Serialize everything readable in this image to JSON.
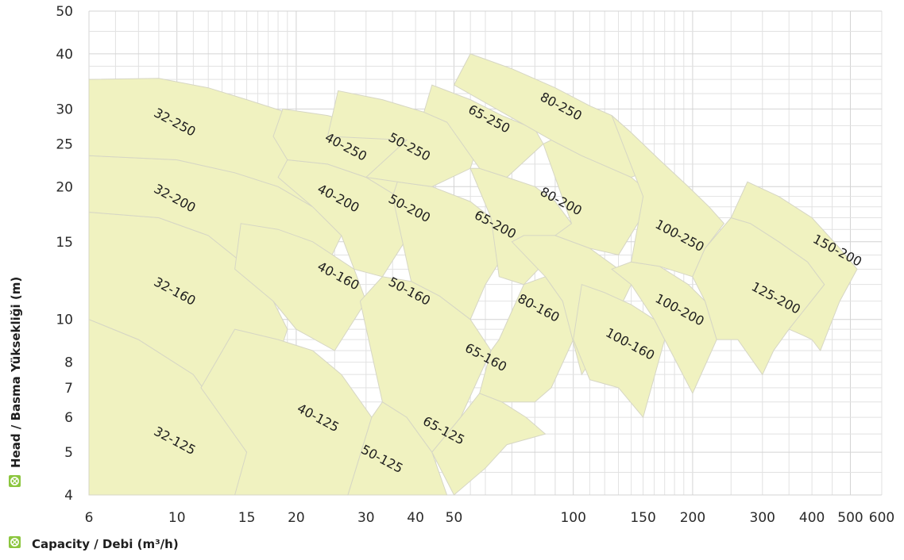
{
  "chart_data": {
    "type": "area",
    "xlabel": "Capacity / Debi (m³/h)",
    "ylabel": "Head / Basma Yüksekliği (m)",
    "x_scale": "log",
    "y_scale": "log",
    "xlim": [
      6,
      600
    ],
    "ylim": [
      4,
      50
    ],
    "grid": true,
    "x_ticks": [
      "6",
      "10",
      "15",
      "20",
      "30",
      "40",
      "50",
      "100",
      "150",
      "200",
      "300",
      "400",
      "500",
      "600"
    ],
    "y_ticks": [
      "4",
      "5",
      "6",
      "7",
      "8",
      "10",
      "15",
      "20",
      "25",
      "30",
      "40",
      "50"
    ],
    "colors": {
      "region_fill": "#f0f2c0",
      "region_border": "#d6d6c4",
      "icon": "#8cc63f"
    },
    "icon": "pump-badge-icon",
    "pump_ranges": [
      {
        "label": "32-125",
        "points": [
          [
            6,
            4
          ],
          [
            6,
            10
          ],
          [
            8,
            9
          ],
          [
            11,
            7.5
          ],
          [
            13.5,
            5.8
          ],
          [
            15,
            5
          ],
          [
            15,
            4
          ]
        ]
      },
      {
        "label": "32-160",
        "points": [
          [
            6,
            10
          ],
          [
            6,
            17.5
          ],
          [
            9,
            17
          ],
          [
            12,
            15.5
          ],
          [
            15,
            13.2
          ],
          [
            17.5,
            11
          ],
          [
            19,
            9.5
          ],
          [
            15,
            5
          ],
          [
            13.5,
            5.8
          ],
          [
            11,
            7.5
          ],
          [
            8,
            9
          ]
        ]
      },
      {
        "label": "32-200",
        "points": [
          [
            6,
            17.5
          ],
          [
            6,
            23.5
          ],
          [
            10,
            23
          ],
          [
            14,
            21.5
          ],
          [
            18,
            20
          ],
          [
            22,
            18
          ],
          [
            26,
            15.5
          ],
          [
            20,
            9.5
          ],
          [
            17.5,
            11
          ],
          [
            15,
            13.2
          ],
          [
            12,
            15.5
          ],
          [
            9,
            17
          ]
        ]
      },
      {
        "label": "32-250",
        "points": [
          [
            6,
            23.5
          ],
          [
            6,
            35
          ],
          [
            9,
            35.2
          ],
          [
            12,
            33.5
          ],
          [
            15,
            31.5
          ],
          [
            20,
            29
          ],
          [
            24,
            26
          ],
          [
            28,
            23.5
          ],
          [
            22,
            18
          ],
          [
            18,
            20
          ],
          [
            14,
            21.5
          ],
          [
            10,
            23
          ]
        ]
      },
      {
        "label": "40-125",
        "points": [
          [
            11.5,
            7
          ],
          [
            14,
            9.5
          ],
          [
            18,
            9
          ],
          [
            22,
            8.5
          ],
          [
            26,
            7.5
          ],
          [
            31,
            6
          ],
          [
            27,
            4
          ],
          [
            14,
            4
          ],
          [
            15,
            5
          ]
        ]
      },
      {
        "label": "40-160",
        "points": [
          [
            14,
            13
          ],
          [
            14.5,
            16.5
          ],
          [
            18,
            16
          ],
          [
            22,
            15
          ],
          [
            28,
            13
          ],
          [
            30,
            11
          ],
          [
            25,
            8.5
          ],
          [
            20,
            9.5
          ],
          [
            17.5,
            11
          ]
        ]
      },
      {
        "label": "40-200",
        "points": [
          [
            18,
            21
          ],
          [
            19,
            23
          ],
          [
            24,
            22.5
          ],
          [
            30,
            21
          ],
          [
            36,
            19
          ],
          [
            41,
            17
          ],
          [
            33,
            12.5
          ],
          [
            28,
            13
          ],
          [
            26,
            15.5
          ],
          [
            22,
            18
          ]
        ]
      },
      {
        "label": "40-250",
        "points": [
          [
            17.5,
            26
          ],
          [
            18.5,
            30
          ],
          [
            24,
            29
          ],
          [
            30,
            27.5
          ],
          [
            38,
            25.5
          ],
          [
            42,
            23
          ],
          [
            36,
            19
          ],
          [
            30,
            21
          ],
          [
            24,
            22.5
          ],
          [
            19,
            23
          ]
        ]
      },
      {
        "label": "50-125",
        "points": [
          [
            27,
            4
          ],
          [
            31,
            6
          ],
          [
            33,
            6.5
          ],
          [
            38,
            6
          ],
          [
            44,
            5
          ],
          [
            48,
            4
          ]
        ]
      },
      {
        "label": "50-160",
        "points": [
          [
            29,
            11
          ],
          [
            33,
            12.5
          ],
          [
            39,
            12.2
          ],
          [
            46,
            11.3
          ],
          [
            55,
            10
          ],
          [
            62,
            8.5
          ],
          [
            52,
            6
          ],
          [
            44,
            5
          ],
          [
            38,
            6
          ],
          [
            33,
            6.5
          ]
        ]
      },
      {
        "label": "50-200",
        "points": [
          [
            35,
            19
          ],
          [
            36,
            20.5
          ],
          [
            44,
            20
          ],
          [
            55,
            18.5
          ],
          [
            62,
            17
          ],
          [
            70,
            15
          ],
          [
            60,
            12
          ],
          [
            55,
            10
          ],
          [
            46,
            11.3
          ],
          [
            39,
            12.2
          ]
        ]
      },
      {
        "label": "50-250",
        "points": [
          [
            24,
            26
          ],
          [
            25.5,
            33
          ],
          [
            33,
            31.5
          ],
          [
            42,
            29.5
          ],
          [
            48,
            28
          ],
          [
            58,
            25.5
          ],
          [
            55,
            22
          ],
          [
            44,
            20
          ],
          [
            36,
            20.5
          ],
          [
            30,
            21
          ],
          [
            38,
            25.5
          ]
        ]
      },
      {
        "label": "65-125",
        "points": [
          [
            44,
            5
          ],
          [
            52,
            6
          ],
          [
            58,
            6.8
          ],
          [
            66,
            6.5
          ],
          [
            76,
            6
          ],
          [
            85,
            5.5
          ],
          [
            68,
            5.2
          ],
          [
            60,
            4.6
          ],
          [
            50,
            4
          ]
        ]
      },
      {
        "label": "65-160",
        "points": [
          [
            62,
            8.5
          ],
          [
            65,
            9
          ],
          [
            75,
            12
          ],
          [
            85,
            12.5
          ],
          [
            94,
            11
          ],
          [
            100,
            9
          ],
          [
            88,
            7
          ],
          [
            80,
            6.5
          ],
          [
            66,
            6.5
          ],
          [
            58,
            6.8
          ]
        ]
      },
      {
        "label": "65-200",
        "points": [
          [
            55,
            22
          ],
          [
            58,
            22
          ],
          [
            68,
            21
          ],
          [
            80,
            20
          ],
          [
            90,
            18.5
          ],
          [
            99,
            16.5
          ],
          [
            85,
            13.5
          ],
          [
            75,
            12
          ],
          [
            65,
            12.5
          ],
          [
            62,
            17
          ]
        ]
      },
      {
        "label": "65-250",
        "points": [
          [
            42,
            29.5
          ],
          [
            44,
            34
          ],
          [
            55,
            31.5
          ],
          [
            66,
            29
          ],
          [
            80,
            27
          ],
          [
            84,
            25
          ],
          [
            68,
            21
          ],
          [
            58,
            22
          ],
          [
            48,
            28
          ]
        ]
      },
      {
        "label": "80-160",
        "points": [
          [
            70,
            15
          ],
          [
            75,
            15.5
          ],
          [
            90,
            15.5
          ],
          [
            110,
            14.5
          ],
          [
            130,
            13
          ],
          [
            140,
            12
          ],
          [
            120,
            9
          ],
          [
            105,
            7.5
          ],
          [
            94,
            11
          ],
          [
            85,
            12.5
          ]
        ]
      },
      {
        "label": "80-200",
        "points": [
          [
            84,
            25
          ],
          [
            88,
            25.5
          ],
          [
            105,
            23.5
          ],
          [
            125,
            22
          ],
          [
            140,
            21
          ],
          [
            160,
            19
          ],
          [
            130,
            14
          ],
          [
            110,
            14.5
          ],
          [
            90,
            15.5
          ],
          [
            99,
            16.5
          ]
        ]
      },
      {
        "label": "80-250",
        "points": [
          [
            50,
            34
          ],
          [
            55,
            40
          ],
          [
            70,
            37
          ],
          [
            90,
            33.5
          ],
          [
            110,
            30.5
          ],
          [
            125,
            29
          ],
          [
            140,
            26.5
          ],
          [
            160,
            22
          ],
          [
            140,
            21
          ],
          [
            105,
            23.5
          ],
          [
            88,
            25.5
          ]
        ]
      },
      {
        "label": "100-160",
        "points": [
          [
            100,
            9
          ],
          [
            105,
            12
          ],
          [
            120,
            11.5
          ],
          [
            140,
            10.8
          ],
          [
            160,
            10
          ],
          [
            170,
            9
          ],
          [
            150,
            6
          ],
          [
            130,
            7
          ],
          [
            110,
            7.3
          ]
        ]
      },
      {
        "label": "100-200",
        "points": [
          [
            125,
            13
          ],
          [
            140,
            13.5
          ],
          [
            165,
            13.2
          ],
          [
            195,
            12
          ],
          [
            215,
            11
          ],
          [
            230,
            9
          ],
          [
            200,
            6.8
          ],
          [
            170,
            9
          ],
          [
            160,
            10
          ],
          [
            140,
            12
          ]
        ]
      },
      {
        "label": "100-250",
        "points": [
          [
            125,
            29
          ],
          [
            140,
            26.5
          ],
          [
            165,
            23
          ],
          [
            195,
            20
          ],
          [
            220,
            18
          ],
          [
            240,
            16.5
          ],
          [
            215,
            14.5
          ],
          [
            200,
            12.5
          ],
          [
            165,
            13.2
          ],
          [
            140,
            13.5
          ],
          [
            150,
            19
          ]
        ]
      },
      {
        "label": "125-200",
        "points": [
          [
            200,
            12.5
          ],
          [
            215,
            14.5
          ],
          [
            250,
            17
          ],
          [
            280,
            16.5
          ],
          [
            330,
            15
          ],
          [
            390,
            13.5
          ],
          [
            430,
            12
          ],
          [
            350,
            9.5
          ],
          [
            320,
            8.5
          ],
          [
            300,
            7.5
          ],
          [
            260,
            9
          ],
          [
            230,
            9
          ],
          [
            215,
            11
          ]
        ]
      },
      {
        "label": "150-200",
        "points": [
          [
            250,
            17
          ],
          [
            275,
            20.5
          ],
          [
            330,
            19
          ],
          [
            400,
            17
          ],
          [
            470,
            14.5
          ],
          [
            520,
            13
          ],
          [
            470,
            11
          ],
          [
            420,
            8.5
          ],
          [
            400,
            9
          ],
          [
            380,
            9.2
          ],
          [
            350,
            9.5
          ],
          [
            430,
            12
          ],
          [
            390,
            13.5
          ],
          [
            330,
            15
          ],
          [
            280,
            16.5
          ]
        ]
      }
    ],
    "region_labels": [
      {
        "label": "32-250",
        "x": 8.7,
        "y": 29
      },
      {
        "label": "32-200",
        "x": 8.7,
        "y": 19.5
      },
      {
        "label": "32-160",
        "x": 8.7,
        "y": 12
      },
      {
        "label": "32-125",
        "x": 8.7,
        "y": 5.5
      },
      {
        "label": "40-250",
        "x": 23.5,
        "y": 25.5
      },
      {
        "label": "40-200",
        "x": 22.5,
        "y": 19.5
      },
      {
        "label": "40-160",
        "x": 22.5,
        "y": 13
      },
      {
        "label": "40-125",
        "x": 20,
        "y": 6.2
      },
      {
        "label": "50-250",
        "x": 34,
        "y": 25.5
      },
      {
        "label": "50-200",
        "x": 34,
        "y": 18.5
      },
      {
        "label": "50-160",
        "x": 34,
        "y": 12
      },
      {
        "label": "50-125",
        "x": 29,
        "y": 5
      },
      {
        "label": "65-250",
        "x": 54,
        "y": 29.5
      },
      {
        "label": "65-200",
        "x": 56,
        "y": 17
      },
      {
        "label": "65-160",
        "x": 53,
        "y": 8.5
      },
      {
        "label": "65-125",
        "x": 41.5,
        "y": 5.8
      },
      {
        "label": "80-250",
        "x": 82,
        "y": 31.5
      },
      {
        "label": "80-200",
        "x": 82,
        "y": 19.2
      },
      {
        "label": "80-160",
        "x": 72,
        "y": 11
      },
      {
        "label": "100-250",
        "x": 160,
        "y": 16.2
      },
      {
        "label": "100-200",
        "x": 160,
        "y": 11
      },
      {
        "label": "100-160",
        "x": 120,
        "y": 9.2
      },
      {
        "label": "125-200",
        "x": 280,
        "y": 11.7
      },
      {
        "label": "150-200",
        "x": 400,
        "y": 15
      }
    ]
  }
}
